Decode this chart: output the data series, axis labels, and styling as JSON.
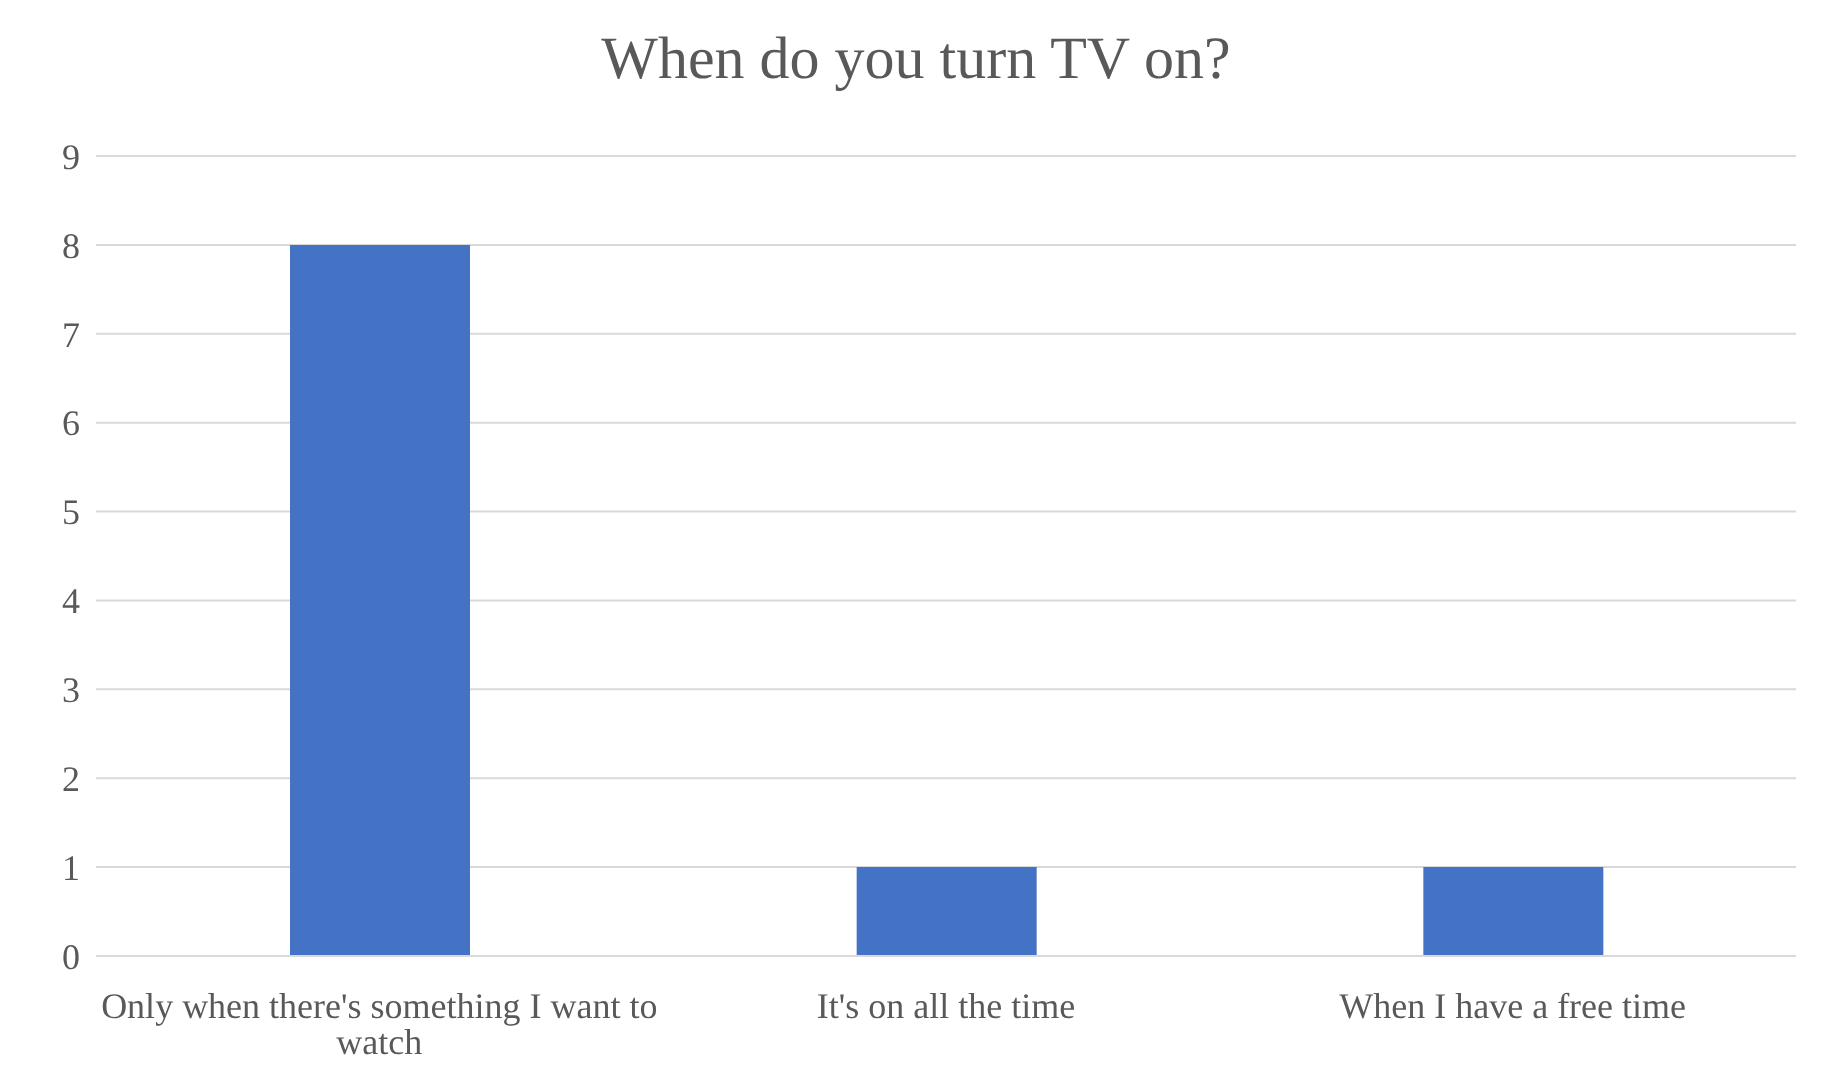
{
  "chart_data": {
    "type": "bar",
    "title": "When do you turn TV on?",
    "categories": [
      "Only when there's something I want to watch",
      "It's on all the time",
      "When I have a free time"
    ],
    "values": [
      8,
      1,
      1
    ],
    "color": "#4472c4",
    "ylim": [
      0,
      9
    ],
    "yticks": [
      0,
      1,
      2,
      3,
      4,
      5,
      6,
      7,
      8,
      9
    ],
    "grid": "y",
    "legend": false
  }
}
